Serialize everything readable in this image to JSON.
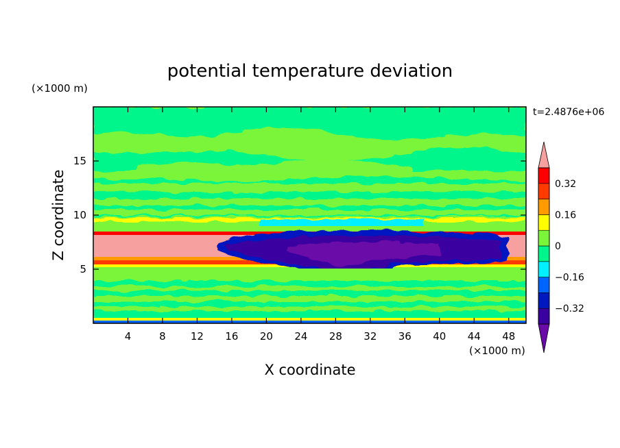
{
  "chart_data": {
    "type": "heatmap",
    "title": "potential temperature deviation",
    "xlabel": "X coordinate",
    "ylabel": "Z coordinate",
    "x_unit": "(×1000 m)",
    "y_unit": "(×1000 m)",
    "time_label": "t=2.4876e+06",
    "xlim": [
      0,
      50
    ],
    "ylim": [
      0,
      20
    ],
    "x_ticks": [
      4,
      8,
      12,
      16,
      20,
      24,
      28,
      32,
      36,
      40,
      44,
      48
    ],
    "y_ticks": [
      5,
      10,
      15
    ],
    "colorbar": {
      "levels": [
        -0.4,
        -0.32,
        -0.24,
        -0.16,
        -0.08,
        0,
        0.08,
        0.16,
        0.24,
        0.32,
        0.4
      ],
      "tick_labels": [
        "0.32",
        "0.16",
        "0",
        "−0.16",
        "−0.32"
      ],
      "tick_values": [
        0.32,
        0.16,
        0,
        -0.16,
        -0.32
      ],
      "colors": [
        "#6a0aa8",
        "#3a00a0",
        "#0018c0",
        "#0064ff",
        "#00f0ff",
        "#00f58a",
        "#7af53a",
        "#ffff00",
        "#ff9a00",
        "#ff3a00",
        "#ff0000",
        "#f7a0a0"
      ],
      "extend": "both"
    },
    "field_regions": [
      {
        "name": "near-surface noisy layer",
        "x": [
          0,
          50
        ],
        "z": [
          0,
          4
        ],
        "value_range": [
          -0.08,
          0.08
        ]
      },
      {
        "name": "mid-level band",
        "x": [
          0,
          50
        ],
        "z": [
          4,
          5.5
        ],
        "value": 0.04
      },
      {
        "name": "warm layer",
        "x": [
          0,
          50
        ],
        "z": [
          5.5,
          8.5
        ],
        "value": 0.4
      },
      {
        "name": "cold anomaly",
        "x": [
          14,
          50
        ],
        "z": [
          4,
          8.5
        ],
        "value": -0.35
      },
      {
        "name": "upper noisy layer",
        "x": [
          0,
          50
        ],
        "z": [
          9,
          14
        ],
        "value_range": [
          -0.08,
          0.08
        ]
      },
      {
        "name": "upper region",
        "x": [
          0,
          50
        ],
        "z": [
          14,
          20
        ],
        "value_range": [
          -0.04,
          0.04
        ]
      }
    ]
  }
}
